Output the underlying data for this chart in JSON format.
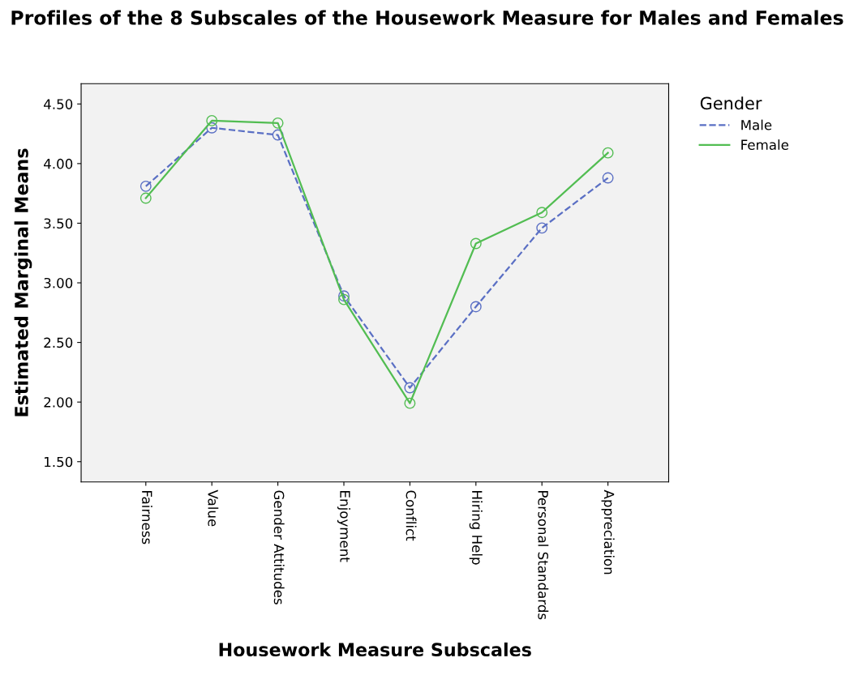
{
  "chart_data": {
    "type": "line",
    "title": "Profiles of the 8 Subscales of the Housework Measure for Males and Females",
    "xlabel": "Housework Measure Subscales",
    "ylabel": "Estimated Marginal Means",
    "legend_title": "Gender",
    "categories": [
      "Fairness",
      "Value",
      "Gender Attitudes",
      "Enjoyment",
      "Conflict",
      "Hiring Help",
      "Personal Standards",
      "Appreciation"
    ],
    "series": [
      {
        "name": "Male",
        "color": "#5a6fc4",
        "line_style": "dashed",
        "values": [
          3.81,
          4.3,
          4.24,
          2.89,
          2.12,
          2.8,
          3.46,
          3.88
        ]
      },
      {
        "name": "Female",
        "color": "#52bd52",
        "line_style": "solid",
        "values": [
          3.71,
          4.36,
          4.34,
          2.86,
          1.99,
          3.33,
          3.59,
          4.09
        ]
      }
    ],
    "ylim": [
      1.33,
      4.67
    ],
    "yticks": [
      {
        "value": 1.5,
        "label": "1.50"
      },
      {
        "value": 2.0,
        "label": "2.00"
      },
      {
        "value": 2.5,
        "label": "2.50"
      },
      {
        "value": 3.0,
        "label": "3.00"
      },
      {
        "value": 3.5,
        "label": "3.50"
      },
      {
        "value": 4.0,
        "label": "4.00"
      },
      {
        "value": 4.5,
        "label": "4.50"
      }
    ],
    "grid": false,
    "legend": "top right",
    "marker": "circle"
  }
}
